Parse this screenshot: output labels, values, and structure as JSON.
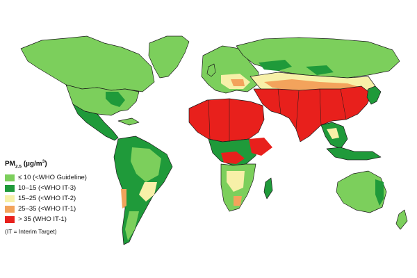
{
  "legend": {
    "title_main": "PM",
    "title_sub": "2.5",
    "title_unit_pre": " (µg/m",
    "title_unit_sup": "3",
    "title_unit_post": ")",
    "items": [
      {
        "label": "≤ 10 (<WHO Guideline)",
        "color": "#7ccf5c"
      },
      {
        "label": "10–15 (<WHO IT-3)",
        "color": "#1f9a3a"
      },
      {
        "label": "15–25 (<WHO IT-2)",
        "color": "#f7f0a8"
      },
      {
        "label": "25–35 (<WHO IT-1)",
        "color": "#f3a35c"
      },
      {
        "label": "> 35 (WHO IT-1)",
        "color": "#e8201c"
      }
    ],
    "note": "(IT = Interim Target)"
  },
  "map_colors": {
    "ocean": "#ffffff",
    "border": "#1a1a1a"
  }
}
